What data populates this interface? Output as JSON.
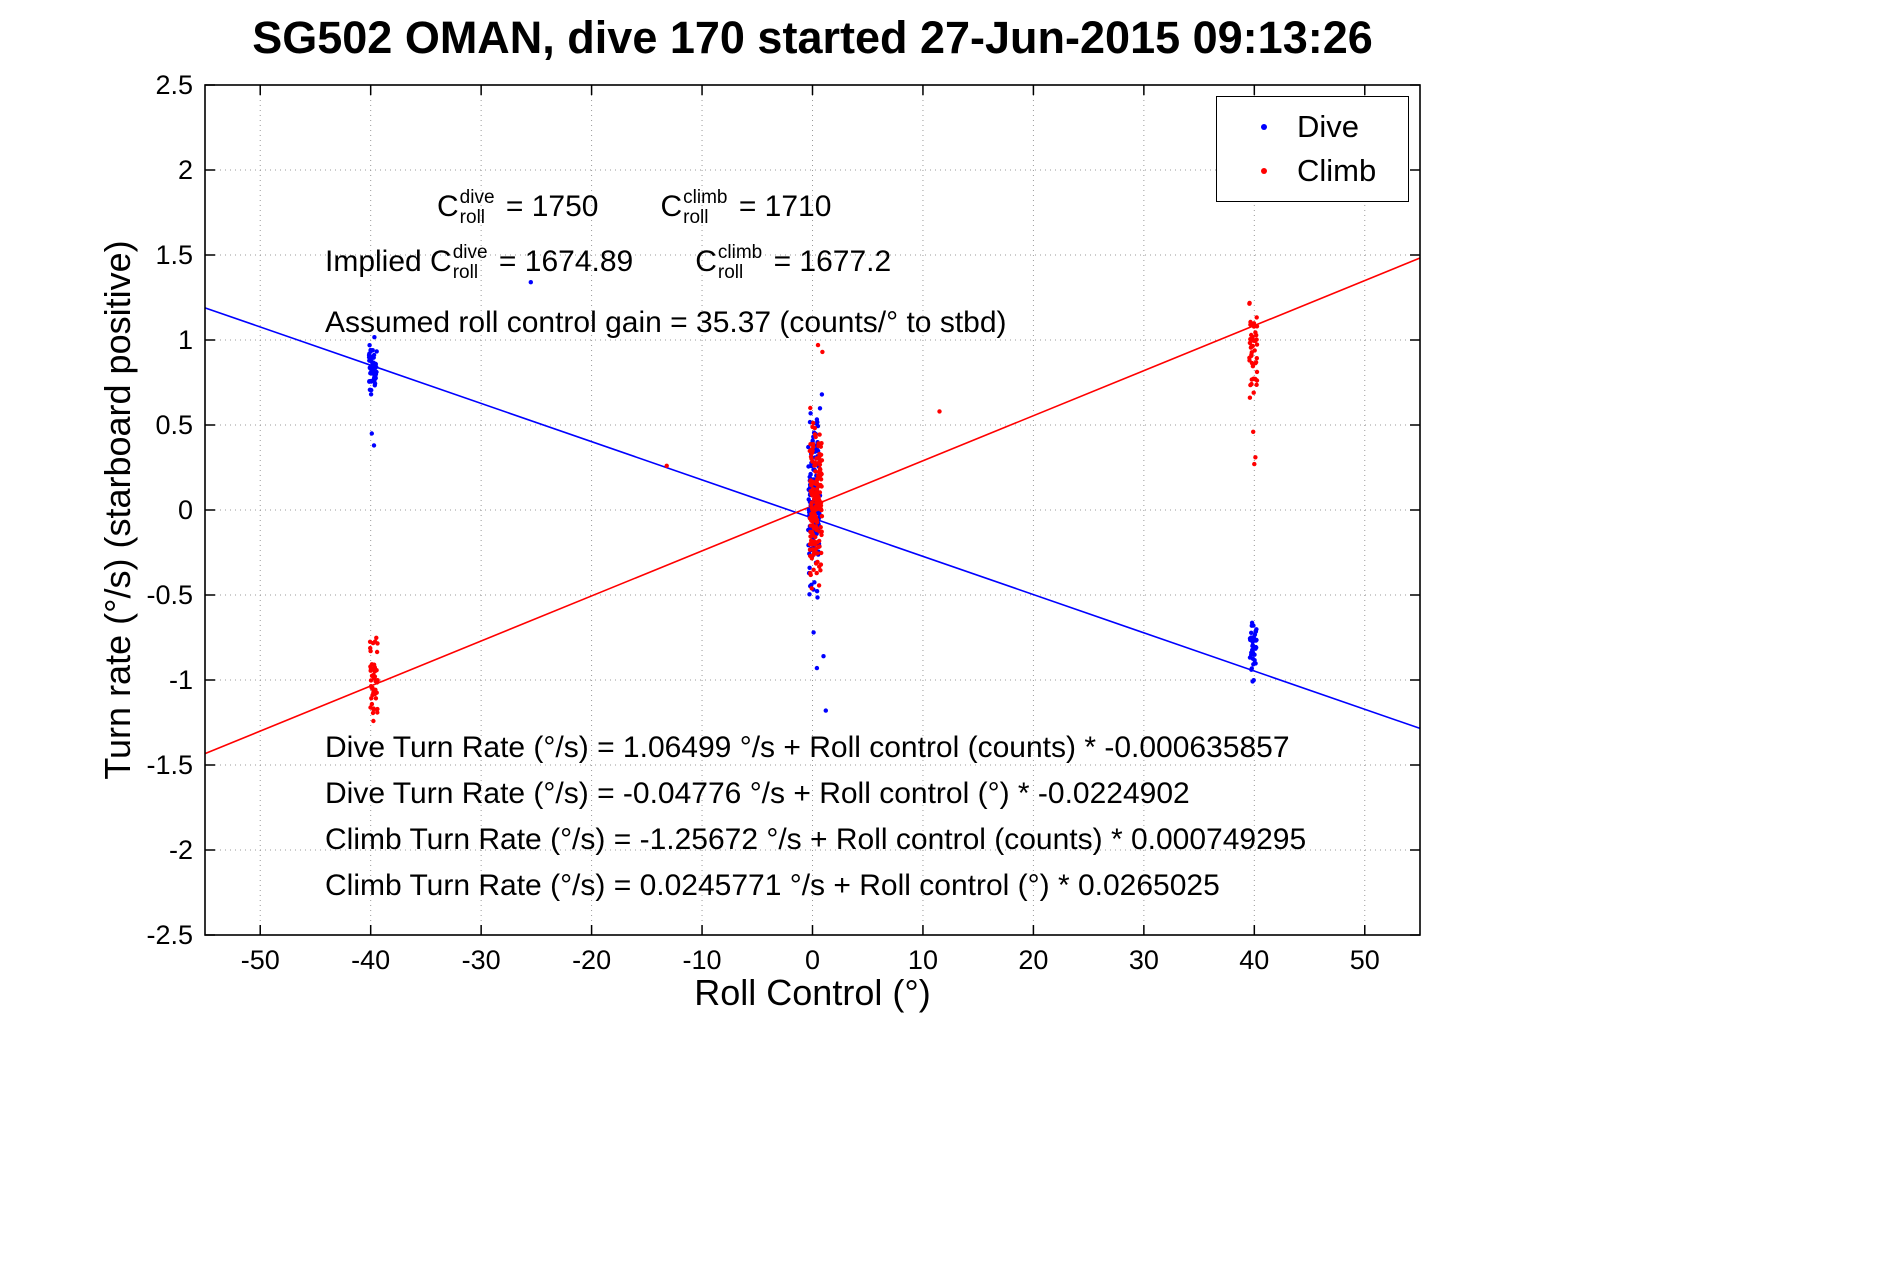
{
  "chart_data": {
    "type": "scatter",
    "title": "SG502 OMAN, dive 170 started 27-Jun-2015 09:13:26",
    "xlabel": "Roll Control (°)",
    "ylabel": "Turn rate (°/s) (starboard positive)",
    "xlim": [
      -55,
      55
    ],
    "ylim": [
      -2.5,
      2.5
    ],
    "xticks": [
      -50,
      -40,
      -30,
      -20,
      -10,
      0,
      10,
      20,
      30,
      40,
      50
    ],
    "yticks": [
      -2.5,
      -2,
      -1.5,
      -1,
      -0.5,
      0,
      0.5,
      1,
      1.5,
      2,
      2.5
    ],
    "grid": true,
    "legend": {
      "position": "top-right",
      "entries": [
        {
          "label": "Dive",
          "color": "#0000ff"
        },
        {
          "label": "Climb",
          "color": "#ff0000"
        }
      ]
    },
    "series": [
      {
        "name": "Dive",
        "color": "#0000ff",
        "clusters": [
          {
            "x": -39.8,
            "xj": 0.35,
            "y0": 0.63,
            "y1": 1.04,
            "n": 55
          },
          {
            "x": 0.15,
            "xj": 0.55,
            "y0": -0.55,
            "y1": 0.63,
            "n": 140
          },
          {
            "x": 39.9,
            "xj": 0.3,
            "y0": -1.05,
            "y1": -0.58,
            "n": 42
          }
        ],
        "points": [
          [
            -25.5,
            1.34
          ],
          [
            -39.7,
            0.38
          ],
          [
            -39.9,
            0.45
          ],
          [
            0.85,
            0.68
          ],
          [
            0.4,
            -0.93
          ],
          [
            1.2,
            -1.18
          ],
          [
            1.0,
            -0.86
          ],
          [
            0.1,
            -0.72
          ]
        ]
      },
      {
        "name": "Climb",
        "color": "#ff0000",
        "clusters": [
          {
            "x": -39.7,
            "xj": 0.35,
            "y0": -1.3,
            "y1": -0.7,
            "n": 48
          },
          {
            "x": 0.3,
            "xj": 0.55,
            "y0": -0.5,
            "y1": 0.55,
            "n": 170
          },
          {
            "x": 39.9,
            "xj": 0.35,
            "y0": 0.6,
            "y1": 1.3,
            "n": 45
          }
        ],
        "points": [
          [
            -13.2,
            0.26
          ],
          [
            11.5,
            0.58
          ],
          [
            0.5,
            0.97
          ],
          [
            0.9,
            0.93
          ],
          [
            40.0,
            0.27
          ],
          [
            40.1,
            0.31
          ],
          [
            39.9,
            0.46
          ],
          [
            -0.2,
            0.6
          ]
        ]
      }
    ],
    "fit_lines": [
      {
        "name": "dive-fit",
        "color": "#0000ff",
        "intercept": -0.04776,
        "slope": -0.0224902
      },
      {
        "name": "climb-fit",
        "color": "#ff0000",
        "intercept": 0.0245771,
        "slope": 0.0265025
      }
    ]
  },
  "annotations": {
    "coeff_line1": [
      {
        "t": "C"
      },
      {
        "sup": "dive",
        "sub": "roll"
      },
      {
        "t": " = 1750"
      },
      {
        "gap": 62
      },
      {
        "t": "C"
      },
      {
        "sup": "climb",
        "sub": "roll"
      },
      {
        "t": " = 1710"
      }
    ],
    "coeff_line2": [
      {
        "t": "Implied C"
      },
      {
        "sup": "dive",
        "sub": "roll"
      },
      {
        "t": " = 1674.89"
      },
      {
        "gap": 62
      },
      {
        "t": "C"
      },
      {
        "sup": "climb",
        "sub": "roll"
      },
      {
        "t": " = 1677.2"
      }
    ],
    "gain_line": "Assumed roll control gain = 35.37 (counts/° to stbd)",
    "equations": [
      "Dive Turn Rate (°/s) = 1.06499 °/s + Roll control (counts) * -0.000635857",
      "Dive Turn Rate (°/s) = -0.04776 °/s + Roll control (°) * -0.0224902",
      "Climb Turn Rate (°/s) = -1.25672 °/s + Roll control (counts) * 0.000749295",
      "Climb Turn Rate (°/s) = 0.0245771 °/s + Roll control (°) * 0.0265025"
    ]
  }
}
